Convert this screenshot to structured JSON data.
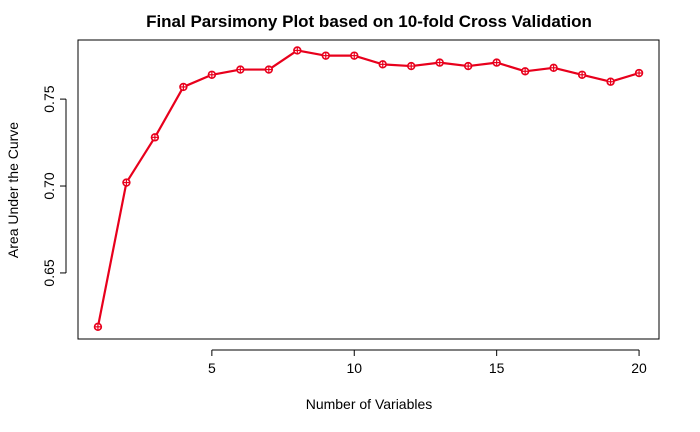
{
  "chart_data": {
    "type": "line",
    "title": "Final Parsimony Plot based on 10-fold Cross Validation",
    "xlabel": "Number of Variables",
    "ylabel": "Area Under the Curve",
    "xlim": [
      0.3,
      20.7
    ],
    "ylim": [
      0.612,
      0.784
    ],
    "xticks": [
      5,
      10,
      15,
      20
    ],
    "yticks": [
      0.65,
      0.7,
      0.75
    ],
    "ytick_labels": [
      "0.65",
      "0.70",
      "0.75"
    ],
    "grid": false,
    "legend": "none",
    "series": [
      {
        "color": "#e8001c",
        "marker": "circle-plus",
        "x": [
          1,
          2,
          3,
          4,
          5,
          6,
          7,
          8,
          9,
          10,
          11,
          12,
          13,
          14,
          15,
          16,
          17,
          18,
          19,
          20
        ],
        "y": [
          0.619,
          0.702,
          0.728,
          0.757,
          0.764,
          0.767,
          0.767,
          0.778,
          0.775,
          0.775,
          0.77,
          0.769,
          0.771,
          0.769,
          0.771,
          0.766,
          0.768,
          0.764,
          0.76,
          0.765
        ]
      }
    ]
  }
}
